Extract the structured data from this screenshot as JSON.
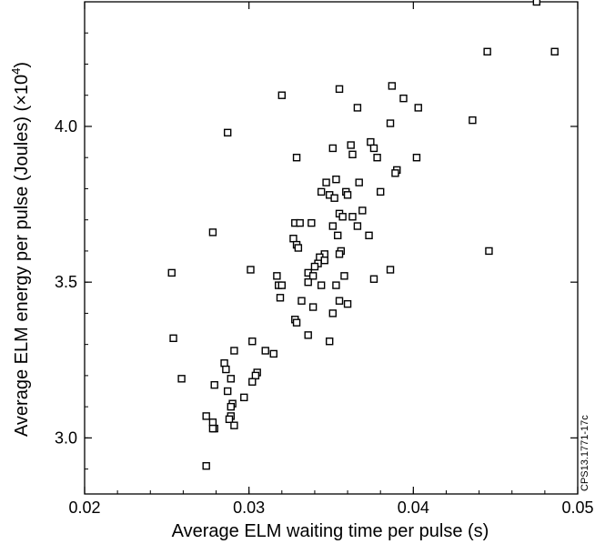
{
  "chart_data": {
    "type": "scatter",
    "xlabel": "Average ELM waiting time per pulse (s)",
    "ylabel_main": "Average ELM energy per pulse (Joules) (×10",
    "ylabel_sup": "4",
    "ylabel_end": ")",
    "xlim": [
      0.02,
      0.05
    ],
    "ylim": [
      2.82,
      4.4
    ],
    "xticks": [
      0.02,
      0.03,
      0.04,
      0.05
    ],
    "xtick_labels": [
      "0.02",
      "0.03",
      "0.04",
      "0.05"
    ],
    "yticks": [
      3.0,
      3.5,
      4.0
    ],
    "ytick_labels": [
      "3.0",
      "3.5",
      "4.0"
    ],
    "grid": false,
    "legend": "none",
    "marker": "open-square",
    "side_note": "CPS13.1771-17c",
    "points": [
      [
        0.0475,
        4.4
      ],
      [
        0.0445,
        4.24
      ],
      [
        0.0486,
        4.24
      ],
      [
        0.0355,
        4.12
      ],
      [
        0.0387,
        4.13
      ],
      [
        0.032,
        4.1
      ],
      [
        0.0394,
        4.09
      ],
      [
        0.0366,
        4.06
      ],
      [
        0.0403,
        4.06
      ],
      [
        0.0436,
        4.02
      ],
      [
        0.0386,
        4.01
      ],
      [
        0.0287,
        3.98
      ],
      [
        0.0374,
        3.95
      ],
      [
        0.0362,
        3.94
      ],
      [
        0.0351,
        3.93
      ],
      [
        0.0376,
        3.93
      ],
      [
        0.0363,
        3.91
      ],
      [
        0.0329,
        3.9
      ],
      [
        0.0378,
        3.9
      ],
      [
        0.0402,
        3.9
      ],
      [
        0.039,
        3.86
      ],
      [
        0.0389,
        3.85
      ],
      [
        0.0353,
        3.83
      ],
      [
        0.0347,
        3.82
      ],
      [
        0.0367,
        3.82
      ],
      [
        0.038,
        3.79
      ],
      [
        0.0344,
        3.79
      ],
      [
        0.0359,
        3.79
      ],
      [
        0.0349,
        3.78
      ],
      [
        0.0352,
        3.77
      ],
      [
        0.036,
        3.78
      ],
      [
        0.0369,
        3.73
      ],
      [
        0.0355,
        3.72
      ],
      [
        0.0363,
        3.71
      ],
      [
        0.0357,
        3.71
      ],
      [
        0.0338,
        3.69
      ],
      [
        0.0328,
        3.69
      ],
      [
        0.0331,
        3.69
      ],
      [
        0.0351,
        3.68
      ],
      [
        0.0366,
        3.68
      ],
      [
        0.0278,
        3.66
      ],
      [
        0.0354,
        3.65
      ],
      [
        0.0373,
        3.65
      ],
      [
        0.0327,
        3.64
      ],
      [
        0.0329,
        3.62
      ],
      [
        0.033,
        3.61
      ],
      [
        0.0356,
        3.6
      ],
      [
        0.0446,
        3.6
      ],
      [
        0.0355,
        3.59
      ],
      [
        0.0346,
        3.59
      ],
      [
        0.0343,
        3.58
      ],
      [
        0.0346,
        3.57
      ],
      [
        0.0342,
        3.56
      ],
      [
        0.034,
        3.55
      ],
      [
        0.0301,
        3.54
      ],
      [
        0.0386,
        3.54
      ],
      [
        0.0253,
        3.53
      ],
      [
        0.0336,
        3.53
      ],
      [
        0.0317,
        3.52
      ],
      [
        0.0358,
        3.52
      ],
      [
        0.0339,
        3.52
      ],
      [
        0.0376,
        3.51
      ],
      [
        0.0336,
        3.5
      ],
      [
        0.0318,
        3.49
      ],
      [
        0.032,
        3.49
      ],
      [
        0.0353,
        3.49
      ],
      [
        0.0344,
        3.49
      ],
      [
        0.0319,
        3.45
      ],
      [
        0.0355,
        3.44
      ],
      [
        0.036,
        3.43
      ],
      [
        0.0332,
        3.44
      ],
      [
        0.0339,
        3.42
      ],
      [
        0.0351,
        3.4
      ],
      [
        0.0328,
        3.38
      ],
      [
        0.0329,
        3.37
      ],
      [
        0.0336,
        3.33
      ],
      [
        0.0254,
        3.32
      ],
      [
        0.0349,
        3.31
      ],
      [
        0.0302,
        3.31
      ],
      [
        0.0291,
        3.28
      ],
      [
        0.031,
        3.28
      ],
      [
        0.0315,
        3.27
      ],
      [
        0.0285,
        3.24
      ],
      [
        0.0286,
        3.22
      ],
      [
        0.0305,
        3.21
      ],
      [
        0.0304,
        3.2
      ],
      [
        0.0289,
        3.19
      ],
      [
        0.0259,
        3.19
      ],
      [
        0.0302,
        3.18
      ],
      [
        0.0279,
        3.17
      ],
      [
        0.0287,
        3.15
      ],
      [
        0.0297,
        3.13
      ],
      [
        0.029,
        3.11
      ],
      [
        0.0289,
        3.1
      ],
      [
        0.0289,
        3.07
      ],
      [
        0.0274,
        3.07
      ],
      [
        0.0288,
        3.06
      ],
      [
        0.0278,
        3.05
      ],
      [
        0.0291,
        3.04
      ],
      [
        0.0279,
        3.03
      ],
      [
        0.0278,
        3.03
      ],
      [
        0.0274,
        2.91
      ]
    ]
  }
}
